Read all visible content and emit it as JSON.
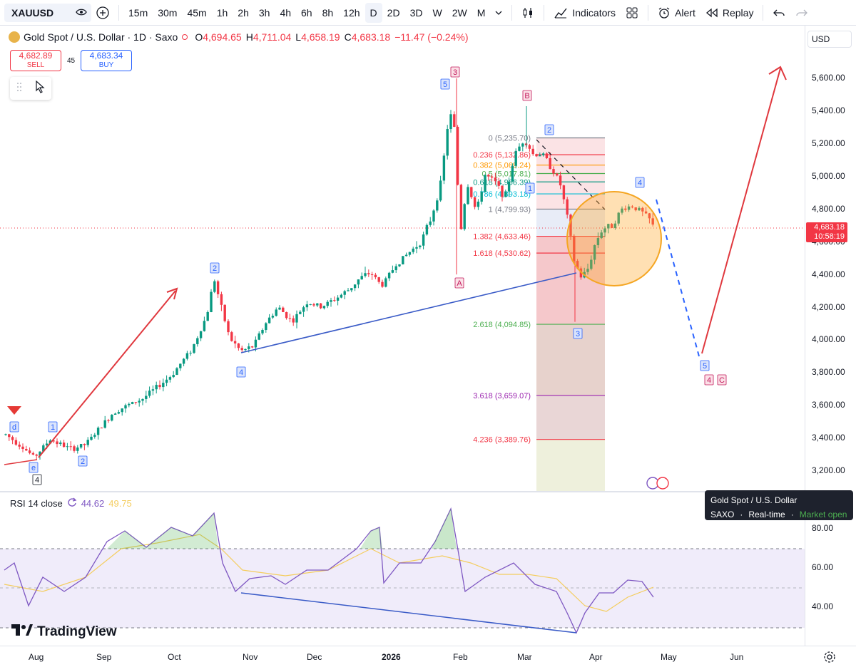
{
  "toolbar": {
    "symbol": "XAUUSD",
    "intervals": [
      "15m",
      "30m",
      "45m",
      "1h",
      "2h",
      "3h",
      "4h",
      "6h",
      "8h",
      "12h",
      "D",
      "2D",
      "3D",
      "W",
      "2W",
      "M"
    ],
    "active_interval": "D",
    "indicators_label": "Indicators",
    "alert_label": "Alert",
    "replay_label": "Replay"
  },
  "legend": {
    "title": "Gold Spot / U.S. Dollar · 1D · Saxo",
    "o_label": "O",
    "o_value": "4,694.65",
    "h_label": "H",
    "h_value": "4,711.04",
    "l_label": "L",
    "l_value": "4,658.19",
    "c_label": "C",
    "c_value": "4,683.18",
    "change": "−11.47 (−0.24%)"
  },
  "trade": {
    "sell_price": "4,682.89",
    "sell_label": "SELL",
    "spread": "45",
    "buy_price": "4,683.34",
    "buy_label": "BUY"
  },
  "price_axis": {
    "currency": "USD",
    "ticks": [
      "5,600.00",
      "5,400.00",
      "5,200.00",
      "5,000.00",
      "4,800.00",
      "4,600.00",
      "4,400.00",
      "4,200.00",
      "4,000.00",
      "3,800.00",
      "3,600.00",
      "3,400.00",
      "3,200.00"
    ],
    "last_price": "4,683.18",
    "countdown": "10:58:19"
  },
  "fib_labels": [
    {
      "text": "0 (5,235.70)",
      "color": "#787b86"
    },
    {
      "text": "0.236 (5,132.86)",
      "color": "#f23645"
    },
    {
      "text": "0.382 (5,069.24)",
      "color": "#ff9800"
    },
    {
      "text": "0.5 (5,017.81)",
      "color": "#4caf50"
    },
    {
      "text": "0.618 (4,966.39)",
      "color": "#089981"
    },
    {
      "text": "0.786 (4,893.18)",
      "color": "#00bcd4"
    },
    {
      "text": "1 (4,799.93)",
      "color": "#787b86"
    },
    {
      "text": "1.382 (4,633.46)",
      "color": "#f23645"
    },
    {
      "text": "1.618 (4,530.62)",
      "color": "#f23645"
    },
    {
      "text": "2.618 (4,094.85)",
      "color": "#4caf50"
    },
    {
      "text": "3.618 (3,659.07)",
      "color": "#9c27b0"
    },
    {
      "text": "4.236 (3,389.76)",
      "color": "#f23645"
    }
  ],
  "wave_labels": [
    "d",
    "e",
    "4",
    "1",
    "2",
    "2",
    "4",
    "3",
    "5",
    "A",
    "B",
    "1",
    "2",
    "3",
    "4",
    "5",
    "4",
    "C"
  ],
  "rsi": {
    "label": "RSI 14 close",
    "value1": "44.62",
    "value2": "49.75",
    "ticks": [
      "80.00",
      "60.00",
      "40.00"
    ]
  },
  "info_popup": {
    "title": "Gold Spot / U.S. Dollar",
    "source": "SAXO",
    "mode": "Real-time",
    "status": "Market open"
  },
  "brand": "TradingView",
  "time_axis": [
    "Aug",
    "Sep",
    "Oct",
    "Nov",
    "Dec",
    "2026",
    "Feb",
    "Mar",
    "Apr",
    "May",
    "Jun"
  ],
  "colors": {
    "up": "#089981",
    "down": "#f23645",
    "rsi": "#7e57c2",
    "rsi_ma": "#f4cd5e",
    "trend": "#3a5bc7",
    "arrow": "#e0383e"
  }
}
